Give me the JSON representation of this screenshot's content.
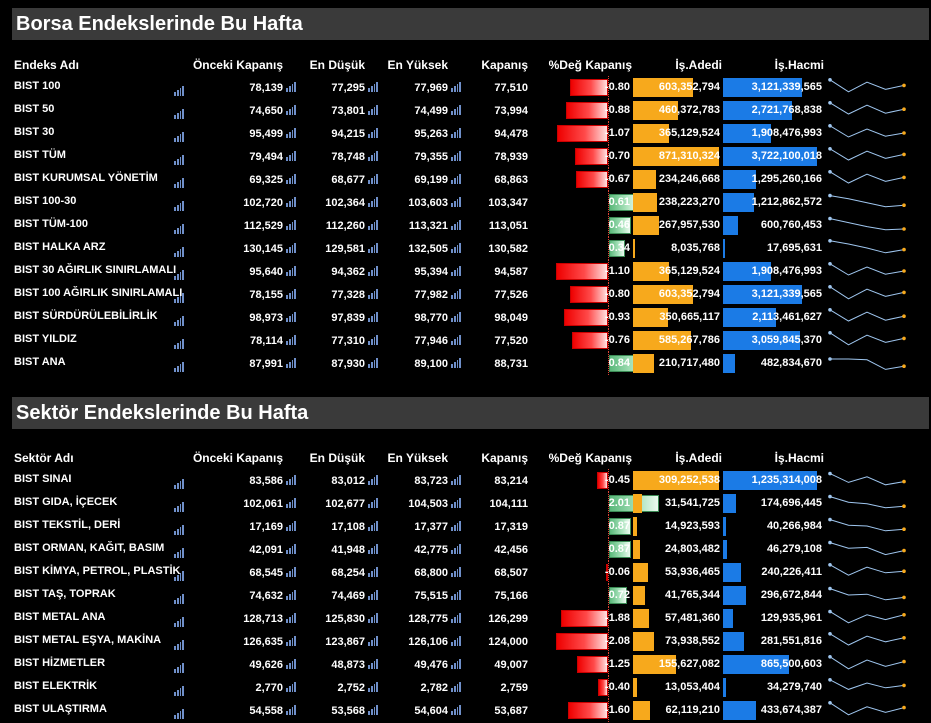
{
  "markets": {
    "title": "Borsa Endekslerinde Bu Hafta",
    "headers": {
      "name": "Endeks Adı",
      "prev": "Önceki Kapanış",
      "low": "En Düşük",
      "high": "En Yüksek",
      "close": "Kapanış",
      "pct": "%Değ Kapanış",
      "volume": "İş.Adedi",
      "value": "İş.Hacmi"
    },
    "rows": [
      {
        "name": "BIST 100",
        "prev": "78,139",
        "low": "77,295",
        "high": "77,969",
        "close": "77,510",
        "pct": "-0.80",
        "pct_num": -0.8,
        "volume": "603,352,794",
        "volume_num": 603352794,
        "value": "3,121,339,565",
        "value_num": 3121339565,
        "spark": [
          0.95,
          0.2,
          0.8,
          0.35,
          0.6
        ]
      },
      {
        "name": "BIST 50",
        "prev": "74,650",
        "low": "73,801",
        "high": "74,499",
        "close": "73,994",
        "pct": "-0.88",
        "pct_num": -0.88,
        "volume": "460,372,783",
        "volume_num": 460372783,
        "value": "2,721,768,838",
        "value_num": 2721768838,
        "spark": [
          0.95,
          0.25,
          0.8,
          0.3,
          0.55
        ]
      },
      {
        "name": "BIST 30",
        "prev": "95,499",
        "low": "94,215",
        "high": "95,263",
        "close": "94,478",
        "pct": "-1.07",
        "pct_num": -1.07,
        "volume": "365,129,524",
        "volume_num": 365129524,
        "value": "1,908,476,993",
        "value_num": 1908476993,
        "spark": [
          0.95,
          0.25,
          0.75,
          0.3,
          0.5
        ]
      },
      {
        "name": "BIST TÜM",
        "prev": "79,494",
        "low": "78,748",
        "high": "79,355",
        "close": "78,939",
        "pct": "-0.70",
        "pct_num": -0.7,
        "volume": "871,310,324",
        "volume_num": 871310324,
        "value": "3,722,100,018",
        "value_num": 3722100018,
        "spark": [
          0.95,
          0.25,
          0.8,
          0.35,
          0.6
        ]
      },
      {
        "name": "BIST KURUMSAL YÖNETİM",
        "prev": "69,325",
        "low": "68,677",
        "high": "69,199",
        "close": "68,863",
        "pct": "-0.67",
        "pct_num": -0.67,
        "volume": "234,246,668",
        "volume_num": 234246668,
        "value": "1,295,260,166",
        "value_num": 1295260166,
        "spark": [
          0.95,
          0.25,
          0.8,
          0.35,
          0.6
        ]
      },
      {
        "name": "BIST 100-30",
        "prev": "102,720",
        "low": "102,364",
        "high": "103,603",
        "close": "103,347",
        "pct": "0.61",
        "pct_num": 0.61,
        "volume": "238,223,270",
        "volume_num": 238223270,
        "value": "1,212,862,572",
        "value_num": 1212862572,
        "spark": [
          0.9,
          0.7,
          0.45,
          0.2,
          0.3
        ]
      },
      {
        "name": "BIST TÜM-100",
        "prev": "112,529",
        "low": "112,260",
        "high": "113,321",
        "close": "113,051",
        "pct": "0.46",
        "pct_num": 0.46,
        "volume": "267,957,530",
        "volume_num": 267957530,
        "value": "600,760,453",
        "value_num": 600760453,
        "spark": [
          0.9,
          0.65,
          0.4,
          0.2,
          0.25
        ]
      },
      {
        "name": "BIST HALKA ARZ",
        "prev": "130,145",
        "low": "129,581",
        "high": "132,505",
        "close": "130,582",
        "pct": "0.34",
        "pct_num": 0.34,
        "volume": "8,035,768",
        "volume_num": 8035768,
        "value": "17,695,631",
        "value_num": 17695631,
        "spark": [
          0.95,
          0.75,
          0.5,
          0.2,
          0.4
        ]
      },
      {
        "name": "BIST 30 AĞIRLIK SINIRLAMALI",
        "prev": "95,640",
        "low": "94,362",
        "high": "95,394",
        "close": "94,587",
        "pct": "-1.10",
        "pct_num": -1.1,
        "volume": "365,129,524",
        "volume_num": 365129524,
        "value": "1,908,476,993",
        "value_num": 1908476993,
        "spark": [
          0.95,
          0.25,
          0.75,
          0.3,
          0.5
        ]
      },
      {
        "name": "BIST 100 AĞIRLIK SINIRLAMALI",
        "prev": "78,155",
        "low": "77,328",
        "high": "77,982",
        "close": "77,526",
        "pct": "-0.80",
        "pct_num": -0.8,
        "volume": "603,352,794",
        "volume_num": 603352794,
        "value": "3,121,339,565",
        "value_num": 3121339565,
        "spark": [
          0.95,
          0.2,
          0.8,
          0.35,
          0.6
        ]
      },
      {
        "name": "BIST SÜRDÜRÜLEBİLİRLİK",
        "prev": "98,973",
        "low": "97,839",
        "high": "98,770",
        "close": "98,049",
        "pct": "-0.93",
        "pct_num": -0.93,
        "volume": "350,665,117",
        "volume_num": 350665117,
        "value": "2,113,461,627",
        "value_num": 2113461627,
        "spark": [
          0.95,
          0.25,
          0.8,
          0.3,
          0.55
        ]
      },
      {
        "name": "BIST YILDIZ",
        "prev": "78,114",
        "low": "77,310",
        "high": "77,946",
        "close": "77,520",
        "pct": "-0.76",
        "pct_num": -0.76,
        "volume": "585,267,786",
        "volume_num": 585267786,
        "value": "3,059,845,370",
        "value_num": 3059845370,
        "spark": [
          0.95,
          0.2,
          0.8,
          0.35,
          0.6
        ]
      },
      {
        "name": "BIST ANA",
        "prev": "87,991",
        "low": "87,930",
        "high": "89,100",
        "close": "88,731",
        "pct": "0.84",
        "pct_num": 0.84,
        "volume": "210,717,480",
        "volume_num": 210717480,
        "value": "482,834,670",
        "value_num": 482834670,
        "spark": [
          0.75,
          0.75,
          0.7,
          0.1,
          0.3
        ]
      }
    ]
  },
  "sectors": {
    "title": "Sektör Endekslerinde Bu Hafta",
    "headers": {
      "name": "Sektör Adı",
      "prev": "Önceki Kapanış",
      "low": "En Düşük",
      "high": "En Yüksek",
      "close": "Kapanış",
      "pct": "%Değ Kapanış",
      "volume": "İş.Adedi",
      "value": "İş.Hacmi"
    },
    "rows": [
      {
        "name": "BIST SINAI",
        "prev": "83,586",
        "low": "83,012",
        "high": "83,723",
        "close": "83,214",
        "pct": "-0.45",
        "pct_num": -0.45,
        "volume": "309,252,538",
        "volume_num": 309252538,
        "value": "1,235,314,008",
        "value_num": 1235314008,
        "spark": [
          0.9,
          0.35,
          0.7,
          0.2,
          0.4
        ]
      },
      {
        "name": "BIST GIDA, İÇECEK",
        "prev": "102,061",
        "low": "102,677",
        "high": "104,503",
        "close": "104,111",
        "pct": "2.01",
        "pct_num": 2.01,
        "volume": "31,541,725",
        "volume_num": 31541725,
        "value": "174,696,445",
        "value_num": 174696445,
        "spark": [
          0.9,
          0.55,
          0.45,
          0.2,
          0.3
        ]
      },
      {
        "name": "BIST TEKSTİL, DERİ",
        "prev": "17,169",
        "low": "17,108",
        "high": "17,377",
        "close": "17,319",
        "pct": "0.87",
        "pct_num": 0.87,
        "volume": "14,923,593",
        "volume_num": 14923593,
        "value": "40,266,984",
        "value_num": 40266984,
        "spark": [
          0.9,
          0.55,
          0.5,
          0.2,
          0.3
        ]
      },
      {
        "name": "BIST ORMAN, KAĞIT, BASIM",
        "prev": "42,091",
        "low": "41,948",
        "high": "42,775",
        "close": "42,456",
        "pct": "0.87",
        "pct_num": 0.87,
        "volume": "24,803,482",
        "volume_num": 24803482,
        "value": "46,279,108",
        "value_num": 46279108,
        "spark": [
          0.9,
          0.55,
          0.6,
          0.15,
          0.4
        ]
      },
      {
        "name": "BIST KİMYA, PETROL, PLASTİK",
        "prev": "68,545",
        "low": "68,254",
        "high": "68,800",
        "close": "68,507",
        "pct": "-0.06",
        "pct_num": -0.06,
        "volume": "53,936,465",
        "volume_num": 53936465,
        "value": "240,226,411",
        "value_num": 240226411,
        "spark": [
          0.95,
          0.3,
          0.8,
          0.45,
          0.55
        ]
      },
      {
        "name": "BIST TAŞ, TOPRAK",
        "prev": "74,632",
        "low": "74,469",
        "high": "75,515",
        "close": "75,166",
        "pct": "0.72",
        "pct_num": 0.72,
        "volume": "41,765,344",
        "volume_num": 41765344,
        "value": "296,672,844",
        "value_num": 296672844,
        "spark": [
          0.9,
          0.5,
          0.55,
          0.2,
          0.35
        ]
      },
      {
        "name": "BIST METAL ANA",
        "prev": "128,713",
        "low": "125,830",
        "high": "128,775",
        "close": "126,299",
        "pct": "-1.88",
        "pct_num": -1.88,
        "volume": "57,481,360",
        "volume_num": 57481360,
        "value": "129,935,961",
        "value_num": 129935961,
        "spark": [
          0.9,
          0.2,
          0.7,
          0.4,
          0.7
        ]
      },
      {
        "name": "BIST METAL EŞYA, MAKİNA",
        "prev": "126,635",
        "low": "123,867",
        "high": "126,106",
        "close": "124,000",
        "pct": "-2.08",
        "pct_num": -2.08,
        "volume": "73,938,552",
        "volume_num": 73938552,
        "value": "281,551,816",
        "value_num": 281551816,
        "spark": [
          0.95,
          0.25,
          0.8,
          0.45,
          0.7
        ]
      },
      {
        "name": "BIST HİZMETLER",
        "prev": "49,626",
        "low": "48,873",
        "high": "49,476",
        "close": "49,007",
        "pct": "-1.25",
        "pct_num": -1.25,
        "volume": "155,627,082",
        "volume_num": 155627082,
        "value": "865,500,603",
        "value_num": 865500603,
        "spark": [
          0.95,
          0.2,
          0.75,
          0.35,
          0.65
        ]
      },
      {
        "name": "BIST ELEKTRİK",
        "prev": "2,770",
        "low": "2,752",
        "high": "2,782",
        "close": "2,759",
        "pct": "-0.40",
        "pct_num": -0.4,
        "volume": "13,053,404",
        "volume_num": 13053404,
        "value": "34,279,740",
        "value_num": 34279740,
        "spark": [
          0.95,
          0.35,
          0.75,
          0.45,
          0.6
        ]
      },
      {
        "name": "BIST ULAŞTIRMA",
        "prev": "54,558",
        "low": "53,568",
        "high": "54,604",
        "close": "53,687",
        "pct": "-1.60",
        "pct_num": -1.6,
        "volume": "62,119,210",
        "volume_num": 62119210,
        "value": "433,674,387",
        "value_num": 433674387,
        "spark": [
          0.95,
          0.2,
          0.7,
          0.35,
          0.65
        ]
      }
    ]
  },
  "colors": {
    "neg": "#ff2a2a",
    "pos": "#6bc48a",
    "volume": "#f7a91c",
    "value": "#1b7be6",
    "spark_line": "#9fc6ef",
    "spark_dot": "#f7a91c"
  },
  "icons": {
    "mini_chart": "bar-chart-icon"
  }
}
